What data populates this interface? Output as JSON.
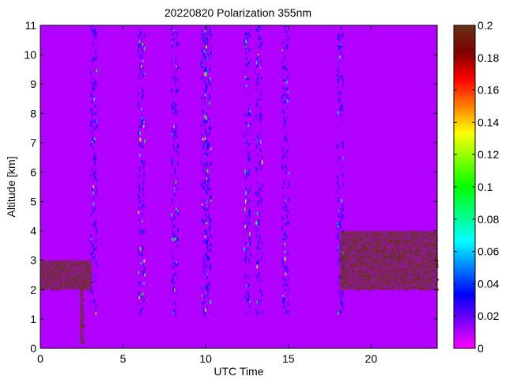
{
  "chart_data": {
    "type": "heatmap",
    "title": "20220820 Polarization 355nm",
    "xlabel": "UTC Time",
    "ylabel": "Altitude [km]",
    "xlim": [
      0,
      24
    ],
    "ylim": [
      0,
      11
    ],
    "x_ticks": [
      0,
      5,
      10,
      15,
      20
    ],
    "x_tick_labels": [
      "0",
      "5",
      "10",
      "15",
      "20"
    ],
    "y_ticks": [
      0,
      1,
      2,
      3,
      4,
      5,
      6,
      7,
      8,
      9,
      10,
      11
    ],
    "y_tick_labels": [
      "0",
      "1",
      "2",
      "3",
      "4",
      "5",
      "6",
      "7",
      "8",
      "9",
      "10",
      "11"
    ],
    "colorbar": {
      "colormap": "jet-like (magenta to dark brown)",
      "range": [
        0,
        0.2
      ],
      "ticks": [
        0,
        0.02,
        0.04,
        0.06,
        0.08,
        0.1,
        0.12,
        0.14,
        0.16,
        0.18,
        0.2
      ],
      "tick_labels": [
        "0",
        "0.02",
        "0.04",
        "0.06",
        "0.08",
        "0.1",
        "0.12",
        "0.14",
        "0.16",
        "0.18",
        "0.2"
      ],
      "colors": [
        "#ff00ff",
        "#7f00ff",
        "#0000ff",
        "#007fff",
        "#00ffff",
        "#00ff7f",
        "#00ff00",
        "#7fff00",
        "#ffff00",
        "#ff7f00",
        "#ff0000",
        "#7f0000",
        "#663319"
      ]
    },
    "background_value": 0.01,
    "regions": [
      {
        "x": [
          0,
          3.1
        ],
        "y": [
          2.0,
          3.0
        ],
        "value": 0.2
      },
      {
        "x": [
          18.1,
          24
        ],
        "y": [
          2.0,
          4.0
        ],
        "value": 0.2
      },
      {
        "x": [
          2.4,
          2.6
        ],
        "y": [
          0.2,
          2.2
        ],
        "value": 0.2
      }
    ],
    "streaks_x": [
      3.2,
      6.1,
      8.1,
      9.9,
      10.1,
      12.5,
      13.2,
      14.8,
      18.1
    ],
    "grid": false
  }
}
